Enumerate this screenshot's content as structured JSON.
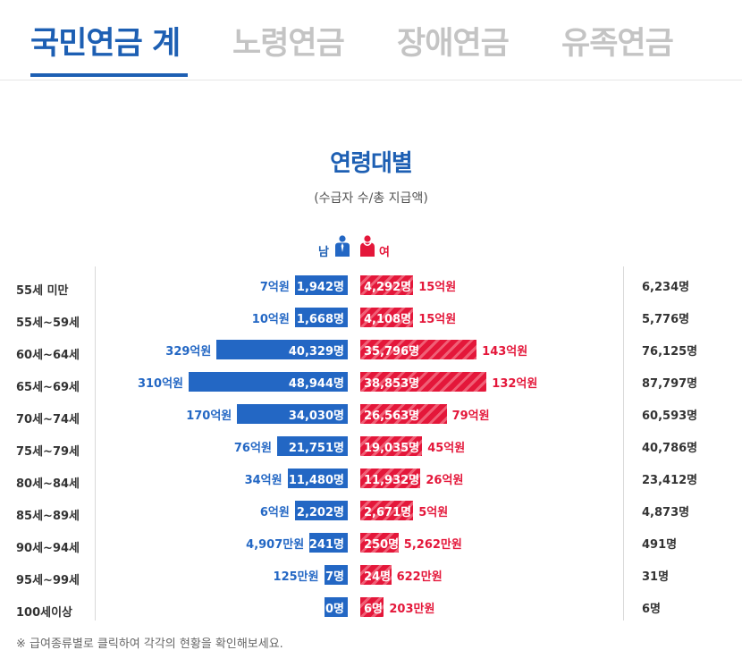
{
  "tabs": [
    {
      "label": "국민연금 계",
      "active": true
    },
    {
      "label": "노령연금",
      "active": false
    },
    {
      "label": "장애연금",
      "active": false
    },
    {
      "label": "유족연금",
      "active": false
    }
  ],
  "footnote": "※ 급여종류별로 클릭하여 각각의 현황을 확인해보세요.",
  "colors": {
    "male": "#2367c4",
    "female": "#e4173a",
    "tab_active": "#1d5fb3"
  },
  "icons": {
    "male": "male-person-icon",
    "female": "female-person-icon"
  },
  "chart_data": {
    "type": "bar",
    "title": "연령대별",
    "subtitle": "(수급자 수/총 지급액)",
    "legend": {
      "male": "남",
      "female": "여",
      "placement": "top-center"
    },
    "categories": [
      "55세 미만",
      "55세~59세",
      "60세~64세",
      "65세~69세",
      "70세~74세",
      "75세~79세",
      "80세~84세",
      "85세~89세",
      "90세~94세",
      "95세~99세",
      "100세이상"
    ],
    "series": [
      {
        "name": "남",
        "side": "left",
        "values": [
          1942,
          1668,
          40329,
          48944,
          34030,
          21751,
          11480,
          2202,
          241,
          7,
          0
        ],
        "count_labels": [
          "1,942명",
          "1,668명",
          "40,329명",
          "48,944명",
          "34,030명",
          "21,751명",
          "11,480명",
          "2,202명",
          "241명",
          "7명",
          "0명"
        ],
        "amount_labels": [
          "7억원",
          "10억원",
          "329억원",
          "310억원",
          "170억원",
          "76억원",
          "34억원",
          "6억원",
          "4,907만원",
          "125만원",
          ""
        ]
      },
      {
        "name": "여",
        "side": "right",
        "values": [
          4292,
          4108,
          35796,
          38853,
          26563,
          19035,
          11932,
          2671,
          250,
          24,
          6
        ],
        "count_labels": [
          "4,292명",
          "4,108명",
          "35,796명",
          "38,853명",
          "26,563명",
          "19,035명",
          "11,932명",
          "2,671명",
          "250명",
          "24명",
          "6명"
        ],
        "amount_labels": [
          "15억원",
          "15억원",
          "143억원",
          "132억원",
          "79억원",
          "45억원",
          "26억원",
          "5억원",
          "5,262만원",
          "622만원",
          "203만원"
        ]
      }
    ],
    "totals": [
      "6,234명",
      "5,776명",
      "76,125명",
      "87,797명",
      "60,593명",
      "40,786명",
      "23,412명",
      "4,873명",
      "491명",
      "31명",
      "6명"
    ]
  }
}
